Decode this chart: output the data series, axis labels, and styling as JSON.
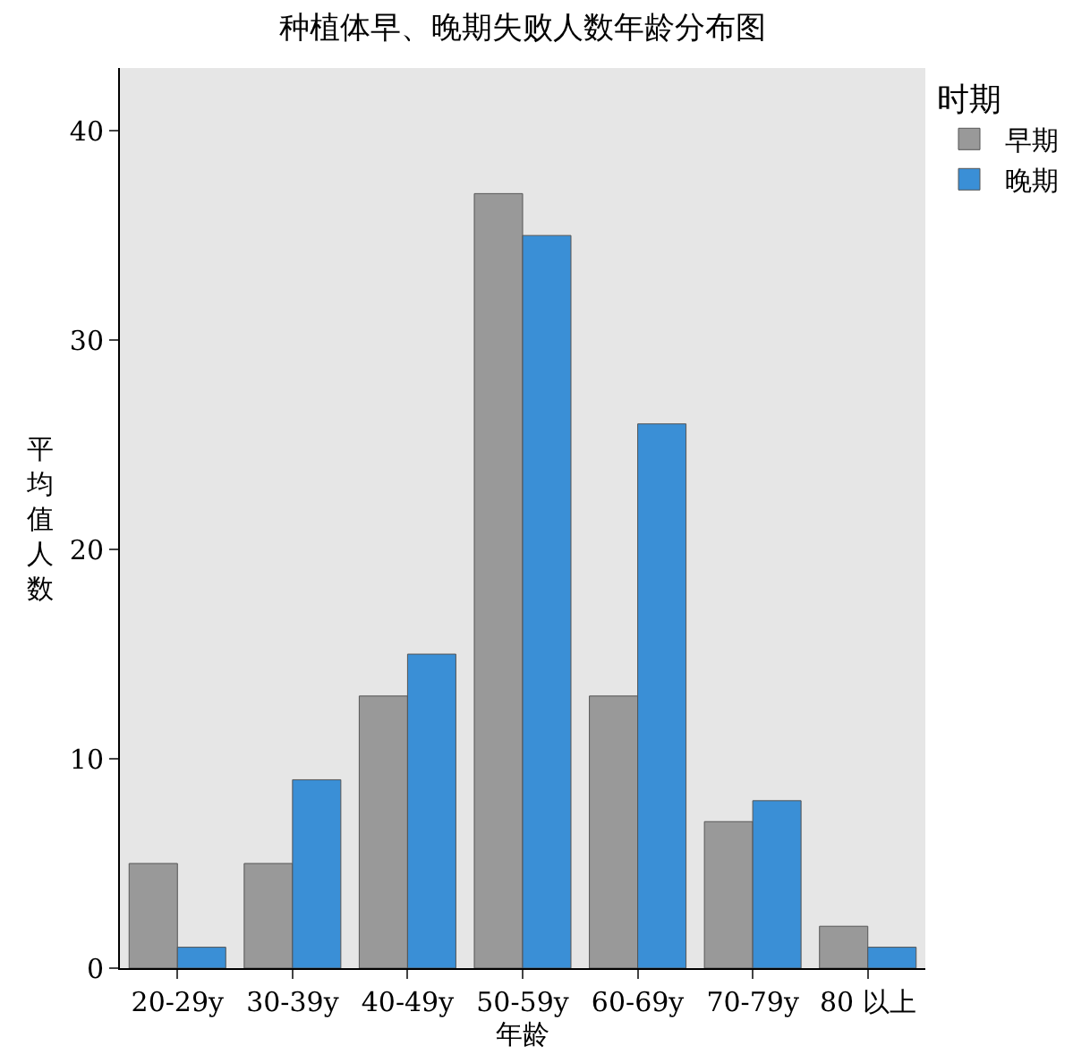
{
  "chart_data": {
    "type": "bar",
    "title": "种植体早、晚期失败人数年龄分布图",
    "xlabel": "年龄",
    "ylabel": "平均值人数",
    "legend_title": "时期",
    "categories": [
      "20-29y",
      "30-39y",
      "40-49y",
      "50-59y",
      "60-69y",
      "70-79y",
      "80 以上"
    ],
    "series": [
      {
        "name": "早期",
        "color": "#999999",
        "values": [
          5,
          5,
          13,
          37,
          13,
          7,
          2
        ]
      },
      {
        "name": "晚期",
        "color": "#3a8fd6",
        "values": [
          1,
          9,
          15,
          35,
          26,
          8,
          1
        ]
      }
    ],
    "ylim": [
      0,
      43
    ],
    "yticks": [
      0,
      10,
      20,
      30,
      40
    ],
    "grid": false,
    "legend": "top right"
  }
}
